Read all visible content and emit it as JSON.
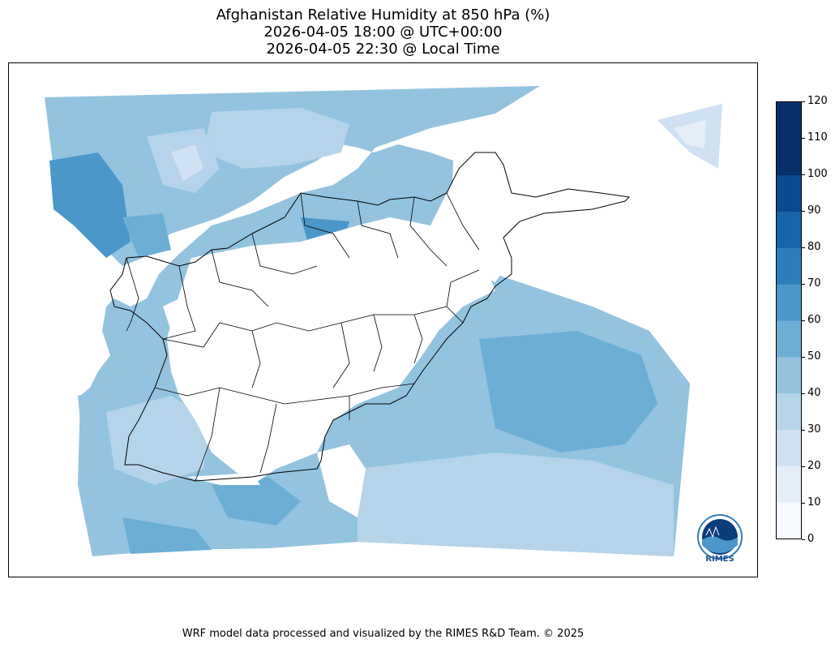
{
  "title": {
    "line1": "Afghanistan Relative Humidity at 850 hPa (%)",
    "line2": "2026-04-05 18:00 @ UTC+00:00",
    "line3": "2026-04-05 22:30 @ Local Time"
  },
  "colorbar": {
    "ticks": [
      "0",
      "10",
      "20",
      "30",
      "40",
      "50",
      "60",
      "70",
      "80",
      "90",
      "100",
      "110",
      "120"
    ],
    "colors": [
      "#f7fbff",
      "#e3eef9",
      "#cfe1f2",
      "#b5d4e9",
      "#93c3df",
      "#6daed5",
      "#4b97c9",
      "#2f7ebc",
      "#1864aa",
      "#0a4a90",
      "#08306b",
      "#08306b"
    ]
  },
  "logo": {
    "text": "RIMES"
  },
  "footer": "WRF model data processed and visualized by the RIMES R&D Team. © 2025"
}
